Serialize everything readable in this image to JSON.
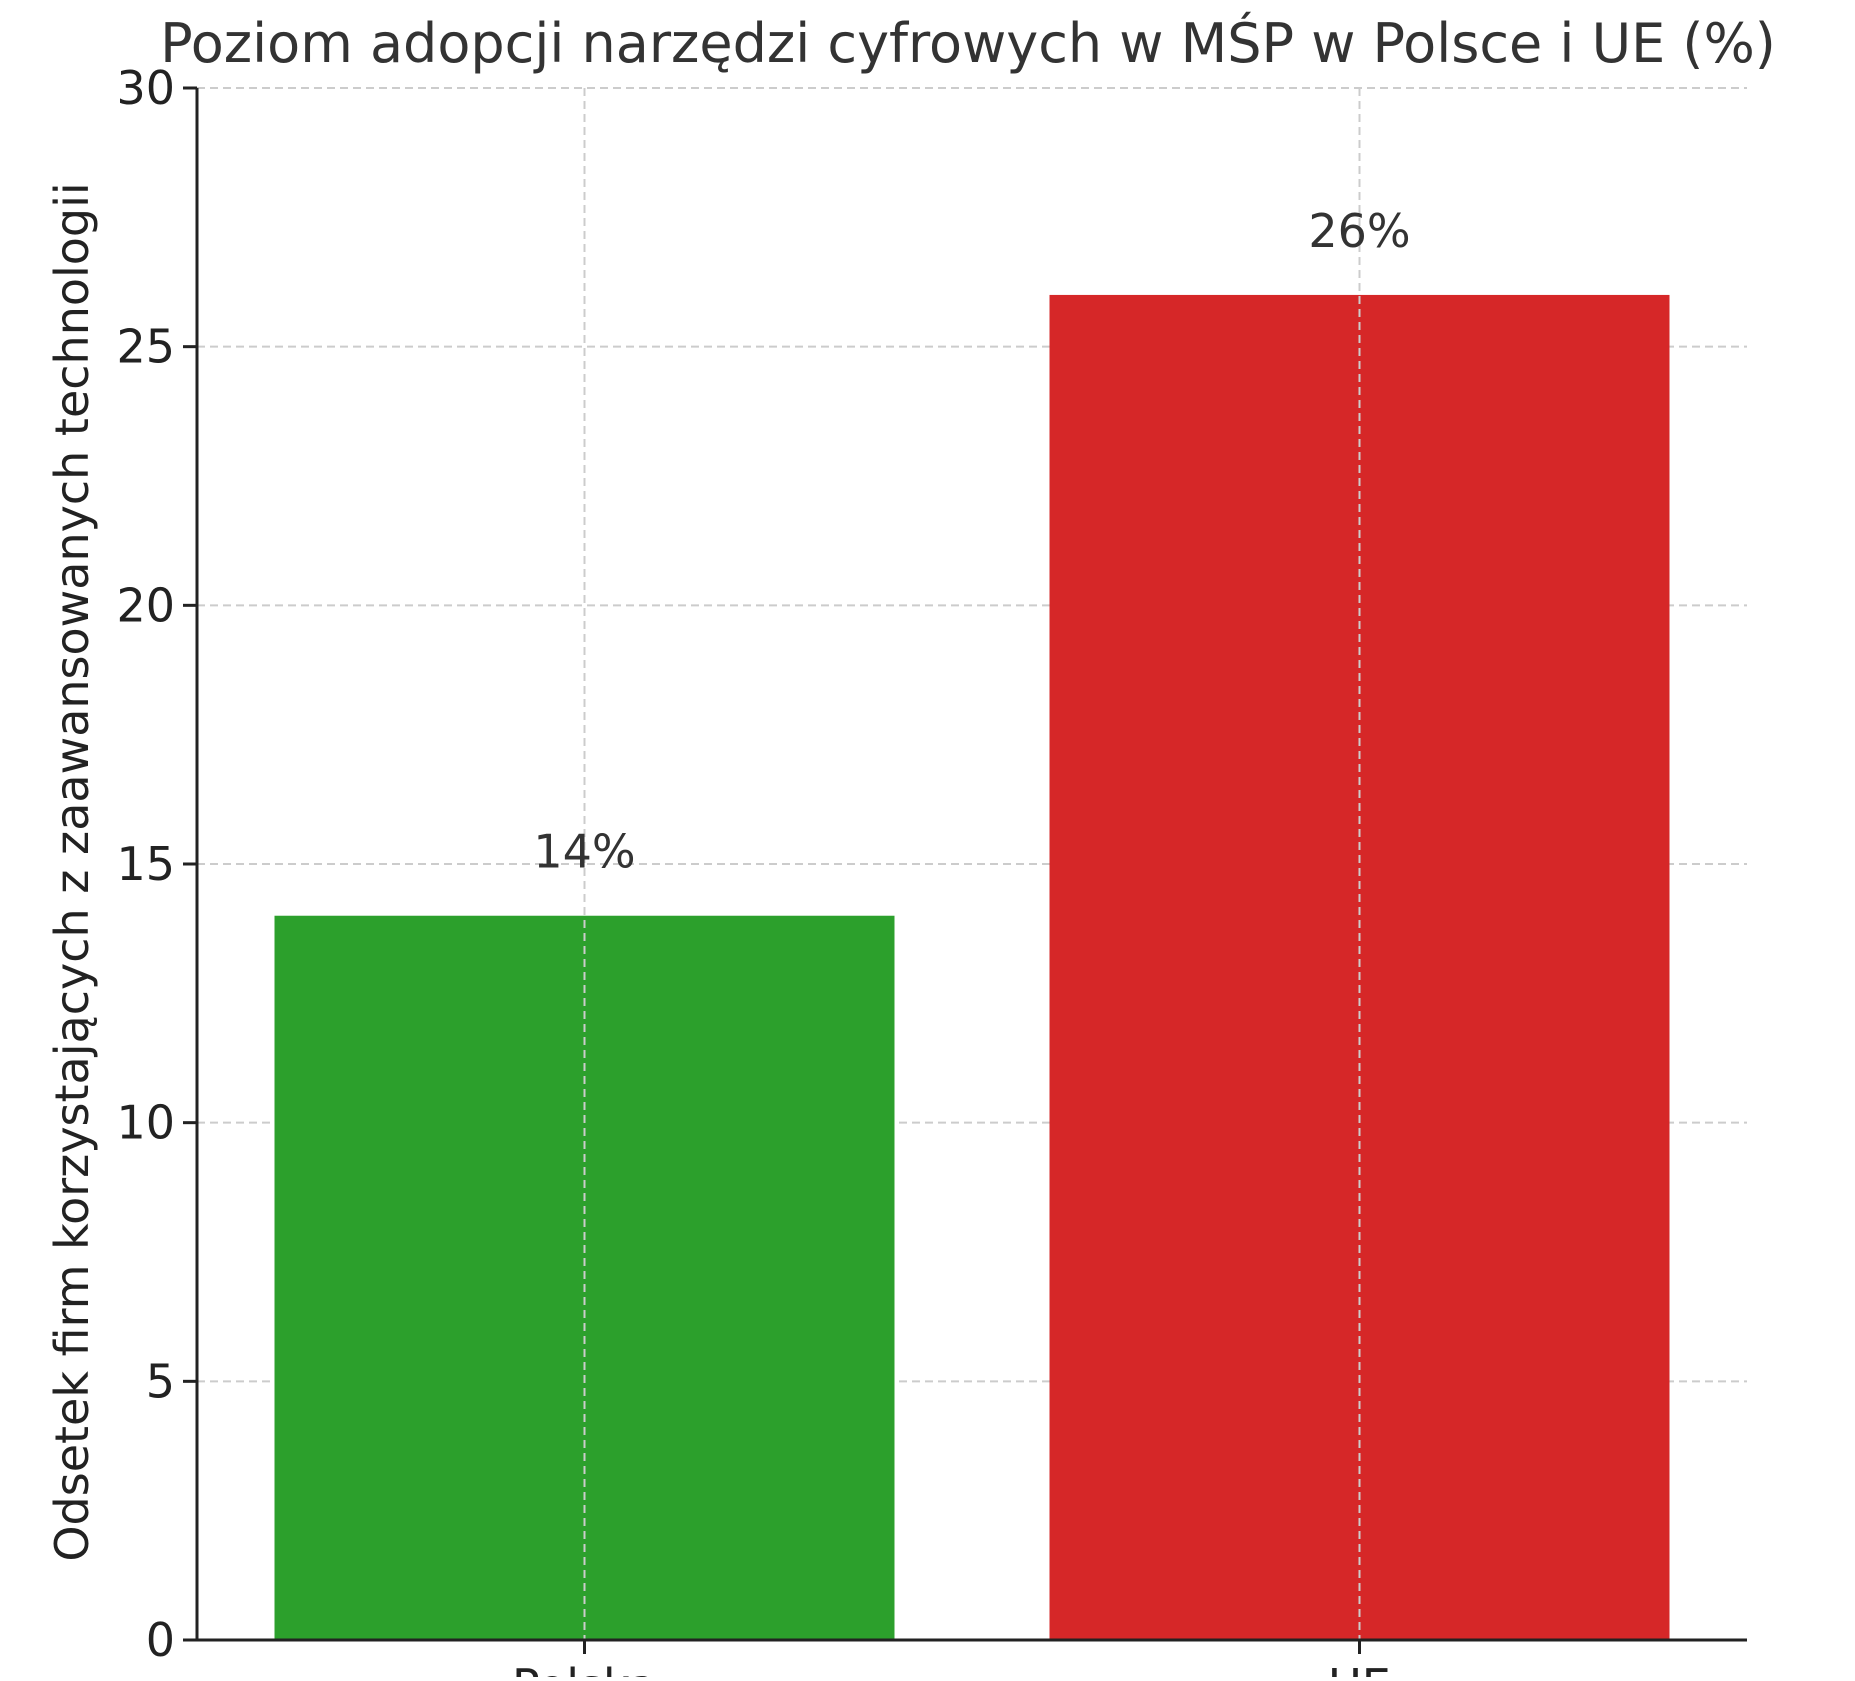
{
  "chart_data": {
    "type": "bar",
    "title": "Poziom adopcji narzędzi cyfrowych w MŚP w Polsce i UE (%)",
    "xlabel": "",
    "ylabel": "Odsetek firm korzystających z zaawansowanych technologii",
    "categories": [
      "Polska",
      "UE"
    ],
    "values": [
      14,
      26
    ],
    "value_labels": [
      "14%",
      "26%"
    ],
    "bar_colors": [
      "#2ca02c",
      "#d62728"
    ],
    "ylim": [
      0,
      30
    ],
    "yticks": [
      0,
      5,
      10,
      15,
      20,
      25,
      30
    ],
    "grid": true,
    "legend": "none"
  }
}
